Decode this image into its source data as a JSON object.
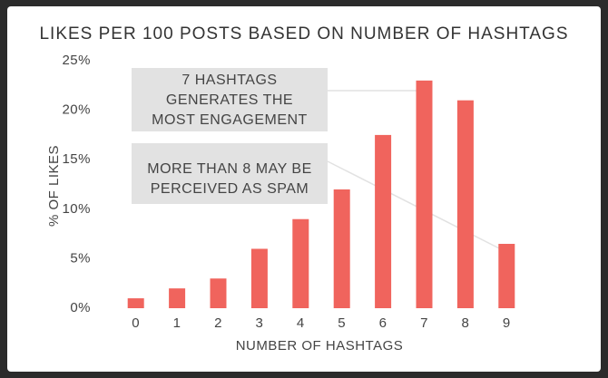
{
  "chart_data": {
    "type": "bar",
    "title": "LIKES PER 100 POSTS BASED ON NUMBER OF HASHTAGS",
    "x_label": "NUMBER OF HASHTAGS",
    "y_label": "% OF LIKES",
    "categories": [
      "0",
      "1",
      "2",
      "3",
      "4",
      "5",
      "6",
      "7",
      "8",
      "9"
    ],
    "values": [
      1,
      2,
      3,
      6,
      9,
      12,
      17.5,
      23,
      21,
      6.5
    ],
    "color": "#f0645d",
    "ylim": [
      0,
      25
    ],
    "yticks": [
      {
        "value": 0,
        "label": "0%"
      },
      {
        "value": 5,
        "label": "5%"
      },
      {
        "value": 10,
        "label": "10%"
      },
      {
        "value": 15,
        "label": "15%"
      },
      {
        "value": 20,
        "label": "20%"
      },
      {
        "value": 25,
        "label": "25%"
      }
    ],
    "grid": false,
    "annotations": [
      {
        "lines": [
          "7 HASHTAGS",
          "GENERATES THE",
          "MOST ENGAGEMENT"
        ]
      },
      {
        "lines": [
          "MORE THAN 8 MAY BE",
          "PERCEIVED AS SPAM"
        ]
      }
    ]
  }
}
